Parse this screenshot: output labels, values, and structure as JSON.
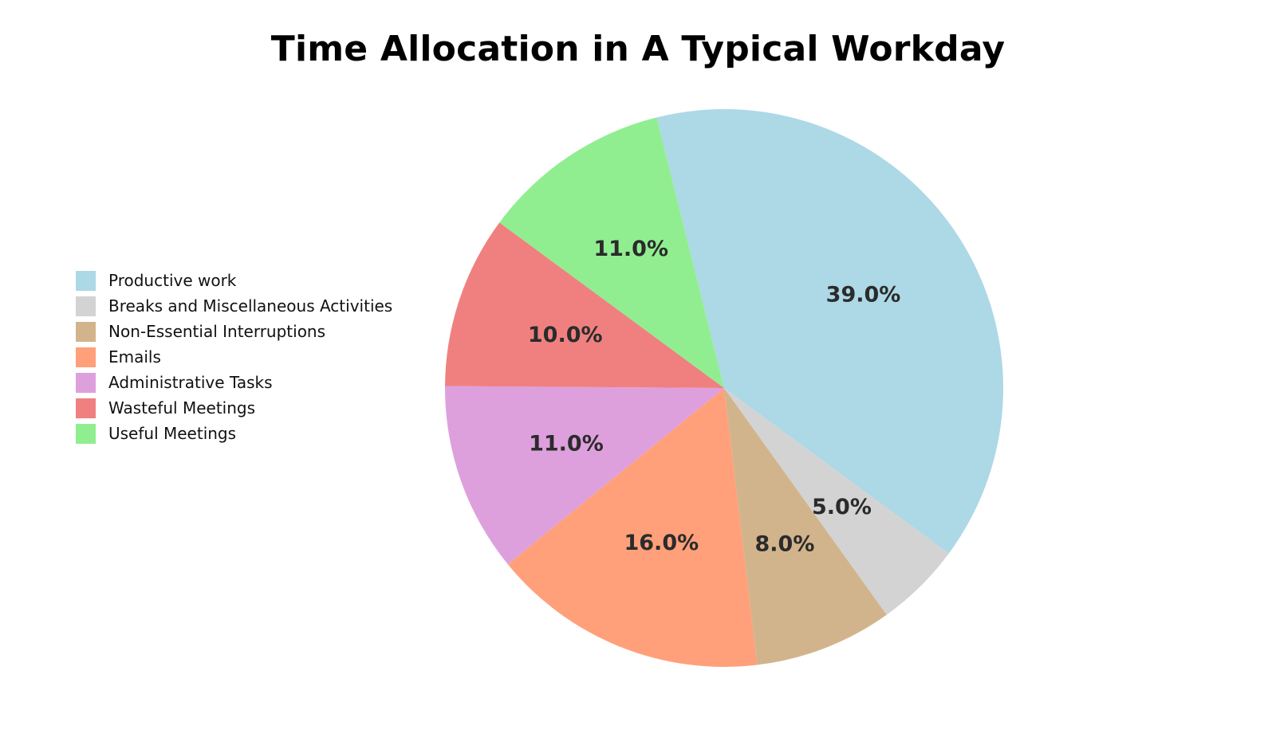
{
  "chart_data": {
    "type": "pie",
    "title": "Time Allocation in A Typical Workday",
    "categories": [
      "Productive work",
      "Breaks and Miscellaneous Activities",
      "Non-Essential Interruptions",
      "Emails",
      "Administrative Tasks",
      "Wasteful Meetings",
      "Useful Meetings"
    ],
    "values": [
      39.0,
      5.0,
      8.0,
      16.0,
      11.0,
      10.0,
      11.0
    ],
    "labels": [
      "39.0%",
      "5.0%",
      "8.0%",
      "16.0%",
      "11.0%",
      "10.0%",
      "11.0%"
    ],
    "colors": [
      "#add8e6",
      "#d3d3d3",
      "#d2b48c",
      "#ffa07a",
      "#dda0dd",
      "#f08080",
      "#90ee90"
    ],
    "legend_position": "left",
    "start_angle_deg": 104,
    "direction": "clockwise"
  }
}
